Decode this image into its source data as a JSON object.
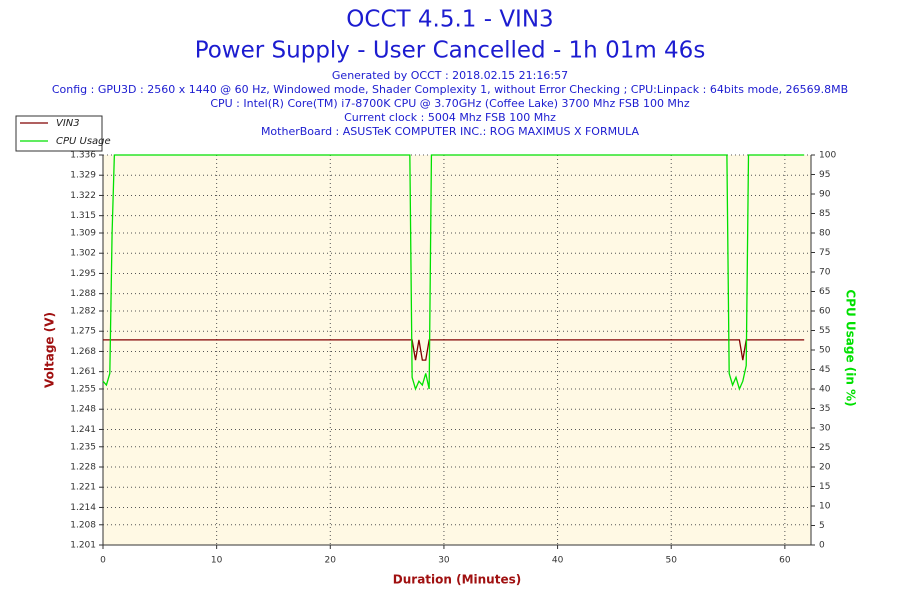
{
  "chart_data": {
    "type": "line",
    "title": "OCCT 4.5.1 - VIN3",
    "subtitle": "Power Supply - User Cancelled - 1h 01m 46s",
    "info": [
      "Generated by OCCT : 2018.02.15 21:16:57",
      "Config : GPU3D : 2560 x 1440 @ 60 Hz, Windowed mode, Shader Complexity 1, without Error Checking ; CPU:Linpack : 64bits mode, 26569.8MB",
      "CPU : Intel(R) Core(TM) i7-8700K CPU @ 3.70GHz (Coffee Lake) 3700 Mhz FSB 100 Mhz",
      "Current clock : 5004 Mhz FSB 100 Mhz",
      "MotherBoard : ASUSTeK COMPUTER INC.: ROG MAXIMUS X FORMULA"
    ],
    "x_label": "Duration (Minutes)",
    "y_label": "Voltage (V)",
    "y2_label": "CPU Usage (in %)",
    "xlim": [
      0,
      62.3
    ],
    "xticks": [
      0,
      10,
      20,
      30,
      40,
      50,
      60
    ],
    "ylim": [
      1.201,
      1.336
    ],
    "yticks": [
      1.201,
      1.208,
      1.214,
      1.221,
      1.228,
      1.235,
      1.241,
      1.248,
      1.255,
      1.261,
      1.268,
      1.275,
      1.282,
      1.288,
      1.295,
      1.302,
      1.309,
      1.315,
      1.322,
      1.329,
      1.336
    ],
    "y2lim": [
      0,
      100
    ],
    "y2ticks": [
      0,
      5,
      10,
      15,
      20,
      25,
      30,
      35,
      40,
      45,
      50,
      55,
      60,
      65,
      70,
      75,
      80,
      85,
      90,
      95,
      100
    ],
    "grid": true,
    "legend": "top-left",
    "x": [
      0,
      0.3,
      0.6,
      0.8,
      1.0,
      5,
      10,
      15,
      20,
      25,
      27.0,
      27.2,
      27.5,
      27.8,
      28.1,
      28.4,
      28.7,
      28.9,
      29.1,
      35,
      40,
      45,
      50,
      54.9,
      55.1,
      55.4,
      55.7,
      56.0,
      56.3,
      56.6,
      56.8,
      60,
      61.7
    ],
    "series": [
      {
        "name": "VIN3",
        "color": "#800000",
        "values": [
          1.272,
          1.272,
          1.272,
          1.272,
          1.272,
          1.272,
          1.272,
          1.272,
          1.272,
          1.272,
          1.272,
          1.272,
          1.265,
          1.272,
          1.265,
          1.265,
          1.272,
          1.272,
          1.272,
          1.272,
          1.272,
          1.272,
          1.272,
          1.272,
          1.272,
          1.272,
          1.272,
          1.272,
          1.265,
          1.272,
          1.272,
          1.272,
          1.272
        ]
      },
      {
        "name": "CPU Usage",
        "color": "#00e000",
        "axis": "y2",
        "values": [
          42,
          41,
          44,
          80,
          100,
          100,
          100,
          100,
          100,
          100,
          100,
          43,
          40,
          42,
          41,
          44,
          40,
          100,
          100,
          100,
          100,
          100,
          100,
          100,
          44,
          41,
          43,
          40,
          42,
          46,
          100,
          100,
          100
        ]
      }
    ]
  }
}
